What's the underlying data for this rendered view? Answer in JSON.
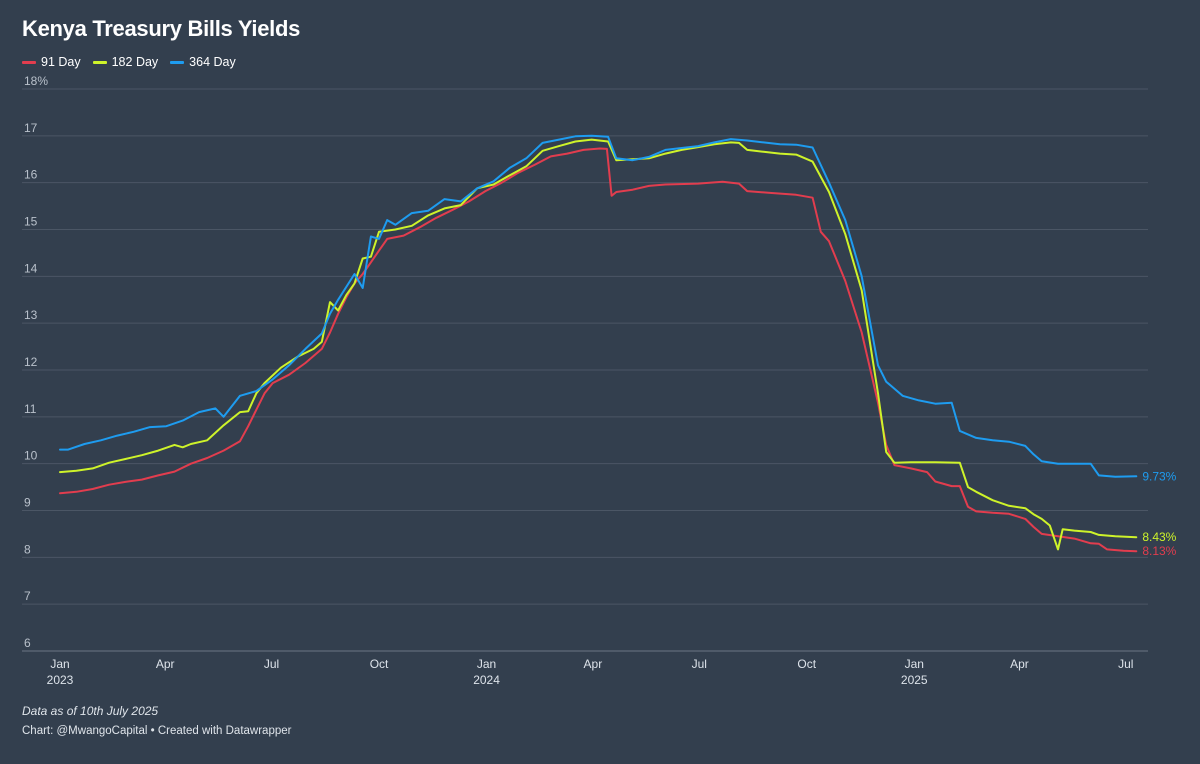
{
  "header": {
    "title": "Kenya Treasury Bills Yields"
  },
  "footer": {
    "notes": "Data as of 10th July 2025",
    "source": "Chart: @MwangoCapital • Created with Datawrapper"
  },
  "chart_data": {
    "type": "line",
    "title": "Kenya Treasury Bills Yields",
    "xlabel": "",
    "ylabel": "",
    "ylim": [
      6,
      18
    ],
    "y_ticks": [
      {
        "value": 6,
        "label": "6"
      },
      {
        "value": 7,
        "label": "7"
      },
      {
        "value": 8,
        "label": "8"
      },
      {
        "value": 9,
        "label": "9"
      },
      {
        "value": 10,
        "label": "10"
      },
      {
        "value": 11,
        "label": "11"
      },
      {
        "value": 12,
        "label": "12"
      },
      {
        "value": 13,
        "label": "13"
      },
      {
        "value": 14,
        "label": "14"
      },
      {
        "value": 15,
        "label": "15"
      },
      {
        "value": 16,
        "label": "16"
      },
      {
        "value": 17,
        "label": "17"
      },
      {
        "value": 18,
        "label": "18%"
      }
    ],
    "xlim": [
      "2023-01-01",
      "2025-07-20"
    ],
    "x_ticks": [
      {
        "date": "2023-01-01",
        "label": "Jan",
        "year": "2023"
      },
      {
        "date": "2023-04-01",
        "label": "Apr",
        "year": ""
      },
      {
        "date": "2023-07-01",
        "label": "Jul",
        "year": ""
      },
      {
        "date": "2023-10-01",
        "label": "Oct",
        "year": ""
      },
      {
        "date": "2024-01-01",
        "label": "Jan",
        "year": "2024"
      },
      {
        "date": "2024-04-01",
        "label": "Apr",
        "year": ""
      },
      {
        "date": "2024-07-01",
        "label": "Jul",
        "year": ""
      },
      {
        "date": "2024-10-01",
        "label": "Oct",
        "year": ""
      },
      {
        "date": "2025-01-01",
        "label": "Jan",
        "year": "2025"
      },
      {
        "date": "2025-04-01",
        "label": "Apr",
        "year": ""
      },
      {
        "date": "2025-07-01",
        "label": "Jul",
        "year": ""
      }
    ],
    "grid": true,
    "legend_position": "top-left",
    "series": [
      {
        "name": "91 Day",
        "color": "#e23d4e",
        "end_label": "8.13%",
        "points": [
          [
            "2023-01-01",
            9.37
          ],
          [
            "2023-01-15",
            9.4
          ],
          [
            "2023-01-29",
            9.46
          ],
          [
            "2023-02-12",
            9.55
          ],
          [
            "2023-02-26",
            9.61
          ],
          [
            "2023-03-12",
            9.66
          ],
          [
            "2023-03-26",
            9.75
          ],
          [
            "2023-04-09",
            9.83
          ],
          [
            "2023-04-23",
            10.0
          ],
          [
            "2023-05-07",
            10.12
          ],
          [
            "2023-05-21",
            10.28
          ],
          [
            "2023-06-04",
            10.48
          ],
          [
            "2023-06-11",
            10.8
          ],
          [
            "2023-06-18",
            11.15
          ],
          [
            "2023-06-25",
            11.5
          ],
          [
            "2023-07-02",
            11.72
          ],
          [
            "2023-07-16",
            11.9
          ],
          [
            "2023-07-30",
            12.15
          ],
          [
            "2023-08-13",
            12.45
          ],
          [
            "2023-08-20",
            12.8
          ],
          [
            "2023-08-27",
            13.2
          ],
          [
            "2023-09-03",
            13.55
          ],
          [
            "2023-09-10",
            13.85
          ],
          [
            "2023-09-17",
            14.05
          ],
          [
            "2023-09-24",
            14.3
          ],
          [
            "2023-10-01",
            14.55
          ],
          [
            "2023-10-08",
            14.8
          ],
          [
            "2023-10-22",
            14.87
          ],
          [
            "2023-11-05",
            15.05
          ],
          [
            "2023-11-19",
            15.25
          ],
          [
            "2023-12-03",
            15.42
          ],
          [
            "2023-12-17",
            15.6
          ],
          [
            "2023-12-31",
            15.82
          ],
          [
            "2024-01-14",
            16.0
          ],
          [
            "2024-01-28",
            16.21
          ],
          [
            "2024-02-11",
            16.38
          ],
          [
            "2024-02-25",
            16.56
          ],
          [
            "2024-03-10",
            16.62
          ],
          [
            "2024-03-24",
            16.7
          ],
          [
            "2024-04-07",
            16.73
          ],
          [
            "2024-04-13",
            16.72
          ],
          [
            "2024-04-17",
            15.72
          ],
          [
            "2024-04-21",
            15.8
          ],
          [
            "2024-05-05",
            15.85
          ],
          [
            "2024-05-19",
            15.93
          ],
          [
            "2024-06-02",
            15.96
          ],
          [
            "2024-06-30",
            15.98
          ],
          [
            "2024-07-21",
            16.02
          ],
          [
            "2024-08-04",
            15.98
          ],
          [
            "2024-08-11",
            15.82
          ],
          [
            "2024-09-01",
            15.78
          ],
          [
            "2024-09-22",
            15.74
          ],
          [
            "2024-10-06",
            15.68
          ],
          [
            "2024-10-13",
            14.95
          ],
          [
            "2024-10-20",
            14.75
          ],
          [
            "2024-11-03",
            13.9
          ],
          [
            "2024-11-17",
            12.8
          ],
          [
            "2024-12-01",
            11.3
          ],
          [
            "2024-12-08",
            10.4
          ],
          [
            "2024-12-15",
            9.97
          ],
          [
            "2024-12-29",
            9.9
          ],
          [
            "2025-01-12",
            9.82
          ],
          [
            "2025-01-19",
            9.62
          ],
          [
            "2025-02-02",
            9.52
          ],
          [
            "2025-02-09",
            9.52
          ],
          [
            "2025-02-16",
            9.08
          ],
          [
            "2025-02-23",
            8.98
          ],
          [
            "2025-03-09",
            8.95
          ],
          [
            "2025-03-23",
            8.93
          ],
          [
            "2025-04-06",
            8.82
          ],
          [
            "2025-04-13",
            8.65
          ],
          [
            "2025-04-20",
            8.5
          ],
          [
            "2025-05-04",
            8.45
          ],
          [
            "2025-05-18",
            8.4
          ],
          [
            "2025-06-01",
            8.3
          ],
          [
            "2025-06-08",
            8.29
          ],
          [
            "2025-06-15",
            8.17
          ],
          [
            "2025-06-29",
            8.14
          ],
          [
            "2025-07-10",
            8.13
          ]
        ]
      },
      {
        "name": "182 Day",
        "color": "#cef32a",
        "end_label": "8.43%",
        "points": [
          [
            "2023-01-01",
            9.82
          ],
          [
            "2023-01-15",
            9.85
          ],
          [
            "2023-01-29",
            9.9
          ],
          [
            "2023-02-12",
            10.02
          ],
          [
            "2023-02-26",
            10.1
          ],
          [
            "2023-03-12",
            10.18
          ],
          [
            "2023-03-26",
            10.28
          ],
          [
            "2023-04-09",
            10.4
          ],
          [
            "2023-04-16",
            10.35
          ],
          [
            "2023-04-23",
            10.42
          ],
          [
            "2023-05-07",
            10.5
          ],
          [
            "2023-05-21",
            10.82
          ],
          [
            "2023-06-04",
            11.1
          ],
          [
            "2023-06-11",
            11.12
          ],
          [
            "2023-06-18",
            11.5
          ],
          [
            "2023-06-25",
            11.72
          ],
          [
            "2023-07-09",
            12.05
          ],
          [
            "2023-07-23",
            12.28
          ],
          [
            "2023-08-06",
            12.45
          ],
          [
            "2023-08-13",
            12.6
          ],
          [
            "2023-08-20",
            13.45
          ],
          [
            "2023-08-27",
            13.27
          ],
          [
            "2023-09-03",
            13.6
          ],
          [
            "2023-09-10",
            13.85
          ],
          [
            "2023-09-17",
            14.38
          ],
          [
            "2023-09-24",
            14.42
          ],
          [
            "2023-10-01",
            14.95
          ],
          [
            "2023-10-15",
            15.0
          ],
          [
            "2023-10-29",
            15.08
          ],
          [
            "2023-11-12",
            15.3
          ],
          [
            "2023-11-26",
            15.45
          ],
          [
            "2023-12-10",
            15.52
          ],
          [
            "2023-12-24",
            15.88
          ],
          [
            "2024-01-07",
            15.96
          ],
          [
            "2024-01-21",
            16.16
          ],
          [
            "2024-02-04",
            16.35
          ],
          [
            "2024-02-18",
            16.68
          ],
          [
            "2024-03-03",
            16.78
          ],
          [
            "2024-03-17",
            16.88
          ],
          [
            "2024-03-31",
            16.92
          ],
          [
            "2024-04-14",
            16.88
          ],
          [
            "2024-04-21",
            16.48
          ],
          [
            "2024-05-05",
            16.5
          ],
          [
            "2024-05-19",
            16.52
          ],
          [
            "2024-06-02",
            16.62
          ],
          [
            "2024-06-16",
            16.7
          ],
          [
            "2024-06-30",
            16.76
          ],
          [
            "2024-07-14",
            16.82
          ],
          [
            "2024-07-28",
            16.86
          ],
          [
            "2024-08-04",
            16.85
          ],
          [
            "2024-08-11",
            16.7
          ],
          [
            "2024-08-25",
            16.66
          ],
          [
            "2024-09-08",
            16.62
          ],
          [
            "2024-09-22",
            16.6
          ],
          [
            "2024-10-06",
            16.45
          ],
          [
            "2024-10-20",
            15.8
          ],
          [
            "2024-11-03",
            14.9
          ],
          [
            "2024-11-17",
            13.7
          ],
          [
            "2024-12-01",
            11.5
          ],
          [
            "2024-12-08",
            10.25
          ],
          [
            "2024-12-15",
            10.02
          ],
          [
            "2024-12-29",
            10.03
          ],
          [
            "2025-01-19",
            10.03
          ],
          [
            "2025-02-09",
            10.02
          ],
          [
            "2025-02-16",
            9.5
          ],
          [
            "2025-02-23",
            9.4
          ],
          [
            "2025-03-09",
            9.22
          ],
          [
            "2025-03-23",
            9.1
          ],
          [
            "2025-04-06",
            9.05
          ],
          [
            "2025-04-13",
            8.92
          ],
          [
            "2025-04-20",
            8.82
          ],
          [
            "2025-04-27",
            8.68
          ],
          [
            "2025-05-04",
            8.17
          ],
          [
            "2025-05-08",
            8.6
          ],
          [
            "2025-05-18",
            8.57
          ],
          [
            "2025-06-01",
            8.54
          ],
          [
            "2025-06-08",
            8.48
          ],
          [
            "2025-06-22",
            8.45
          ],
          [
            "2025-07-10",
            8.43
          ]
        ]
      },
      {
        "name": "364 Day",
        "color": "#1e9cf0",
        "end_label": "9.73%",
        "points": [
          [
            "2023-01-01",
            10.3
          ],
          [
            "2023-01-08",
            10.3
          ],
          [
            "2023-01-22",
            10.42
          ],
          [
            "2023-02-05",
            10.5
          ],
          [
            "2023-02-19",
            10.6
          ],
          [
            "2023-03-05",
            10.68
          ],
          [
            "2023-03-19",
            10.78
          ],
          [
            "2023-04-02",
            10.8
          ],
          [
            "2023-04-16",
            10.92
          ],
          [
            "2023-04-30",
            11.1
          ],
          [
            "2023-05-14",
            11.18
          ],
          [
            "2023-05-21",
            11.0
          ],
          [
            "2023-06-04",
            11.45
          ],
          [
            "2023-06-18",
            11.55
          ],
          [
            "2023-07-02",
            11.8
          ],
          [
            "2023-07-16",
            12.1
          ],
          [
            "2023-07-30",
            12.45
          ],
          [
            "2023-08-13",
            12.78
          ],
          [
            "2023-08-20",
            13.2
          ],
          [
            "2023-08-27",
            13.5
          ],
          [
            "2023-09-10",
            14.05
          ],
          [
            "2023-09-17",
            13.75
          ],
          [
            "2023-09-24",
            14.85
          ],
          [
            "2023-10-01",
            14.8
          ],
          [
            "2023-10-08",
            15.2
          ],
          [
            "2023-10-15",
            15.1
          ],
          [
            "2023-10-29",
            15.35
          ],
          [
            "2023-11-12",
            15.4
          ],
          [
            "2023-11-26",
            15.65
          ],
          [
            "2023-12-10",
            15.6
          ],
          [
            "2023-12-24",
            15.88
          ],
          [
            "2024-01-07",
            16.03
          ],
          [
            "2024-01-21",
            16.32
          ],
          [
            "2024-02-04",
            16.52
          ],
          [
            "2024-02-18",
            16.85
          ],
          [
            "2024-03-03",
            16.92
          ],
          [
            "2024-03-17",
            16.99
          ],
          [
            "2024-03-31",
            17.0
          ],
          [
            "2024-04-14",
            16.98
          ],
          [
            "2024-04-21",
            16.52
          ],
          [
            "2024-05-05",
            16.48
          ],
          [
            "2024-05-19",
            16.55
          ],
          [
            "2024-06-02",
            16.7
          ],
          [
            "2024-06-16",
            16.74
          ],
          [
            "2024-06-30",
            16.78
          ],
          [
            "2024-07-14",
            16.86
          ],
          [
            "2024-07-28",
            16.93
          ],
          [
            "2024-08-11",
            16.9
          ],
          [
            "2024-08-25",
            16.86
          ],
          [
            "2024-09-08",
            16.82
          ],
          [
            "2024-09-22",
            16.81
          ],
          [
            "2024-10-06",
            16.75
          ],
          [
            "2024-10-20",
            16.0
          ],
          [
            "2024-11-03",
            15.2
          ],
          [
            "2024-11-17",
            14.0
          ],
          [
            "2024-12-01",
            12.1
          ],
          [
            "2024-12-08",
            11.75
          ],
          [
            "2024-12-22",
            11.45
          ],
          [
            "2025-01-05",
            11.35
          ],
          [
            "2025-01-19",
            11.28
          ],
          [
            "2025-02-02",
            11.3
          ],
          [
            "2025-02-09",
            10.7
          ],
          [
            "2025-02-23",
            10.55
          ],
          [
            "2025-03-09",
            10.5
          ],
          [
            "2025-03-23",
            10.47
          ],
          [
            "2025-04-06",
            10.38
          ],
          [
            "2025-04-13",
            10.2
          ],
          [
            "2025-04-20",
            10.05
          ],
          [
            "2025-05-04",
            10.0
          ],
          [
            "2025-05-18",
            10.0
          ],
          [
            "2025-06-01",
            10.0
          ],
          [
            "2025-06-08",
            9.75
          ],
          [
            "2025-06-22",
            9.72
          ],
          [
            "2025-07-10",
            9.73
          ]
        ]
      }
    ]
  }
}
